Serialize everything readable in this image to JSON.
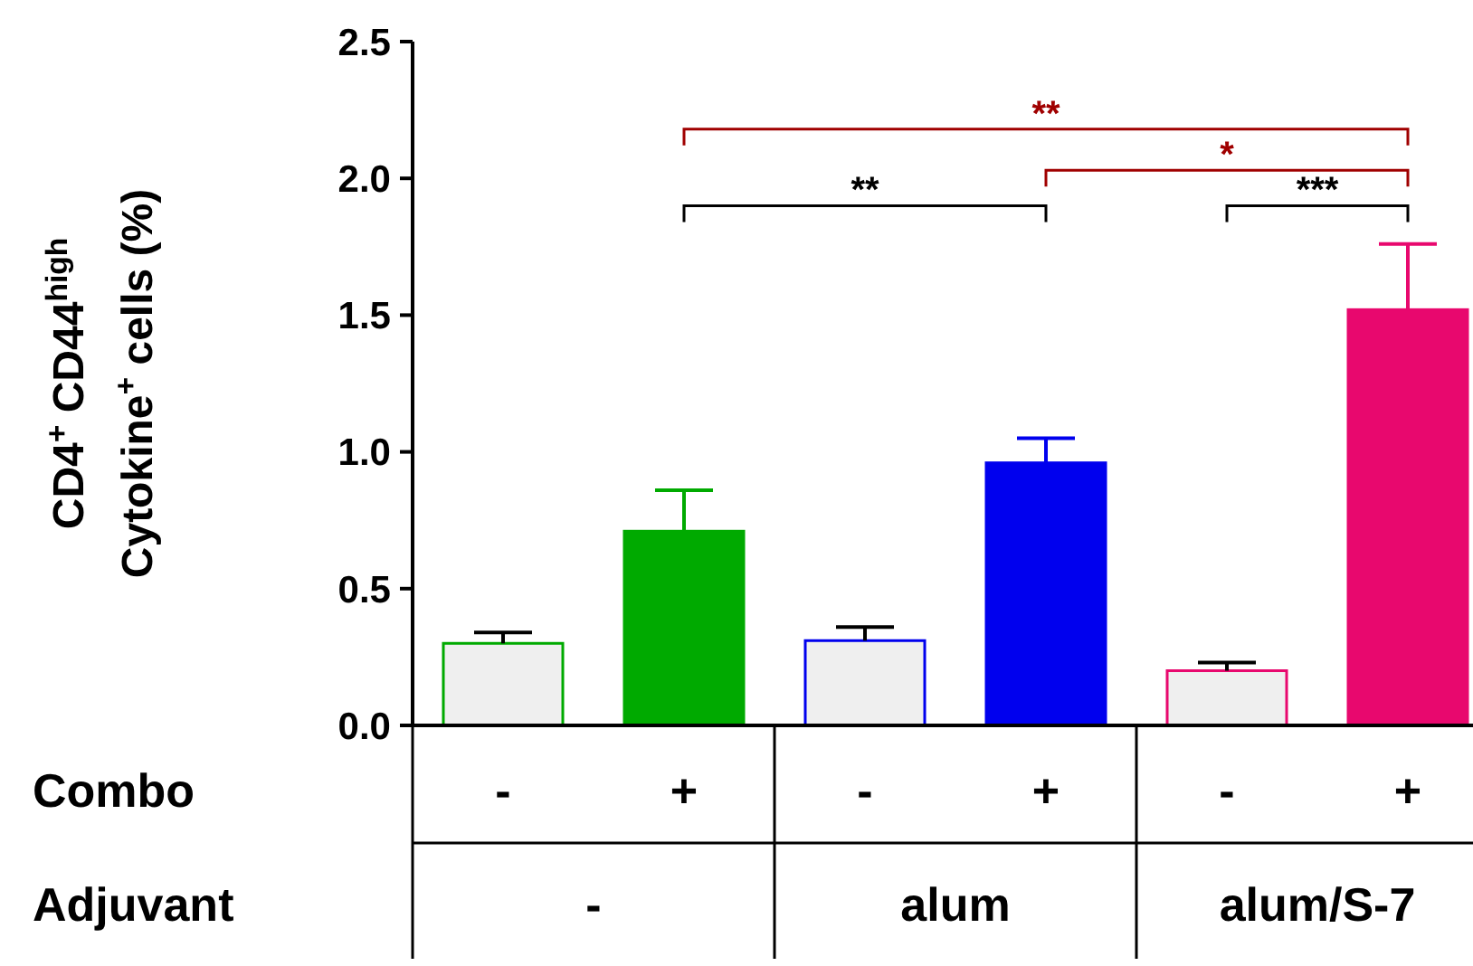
{
  "chart_data": {
    "type": "bar",
    "ylabel": "CD4$^{+}$ CD44$^{high}$\nCytokine$^{+}$ cells (%)",
    "categories": [
      "-",
      "+",
      "-",
      "+",
      "-",
      "+"
    ],
    "values": [
      0.3,
      0.71,
      0.31,
      0.96,
      0.2,
      1.52
    ],
    "errors": [
      0.04,
      0.15,
      0.05,
      0.09,
      0.03,
      0.24
    ],
    "colors": [
      "#efefef",
      "#00aa00",
      "#efefef",
      "#0000ee",
      "#efefef",
      "#e8086e"
    ],
    "ylim": [
      0,
      2.5
    ],
    "yticks": [
      {
        "value": 0,
        "label": "0.0"
      },
      {
        "value": 0.5,
        "label": "0.5"
      },
      {
        "value": 1,
        "label": "1.0"
      },
      {
        "value": 1.5,
        "label": "1.5"
      },
      {
        "value": 2,
        "label": "2.0"
      },
      {
        "value": 2.5,
        "label": "2.5"
      }
    ],
    "grid": false,
    "annotations": [
      "Combo",
      "Adjuvant",
      "-",
      "alum",
      "alum/S-7",
      "**",
      "*",
      "**",
      "***"
    ]
  }
}
